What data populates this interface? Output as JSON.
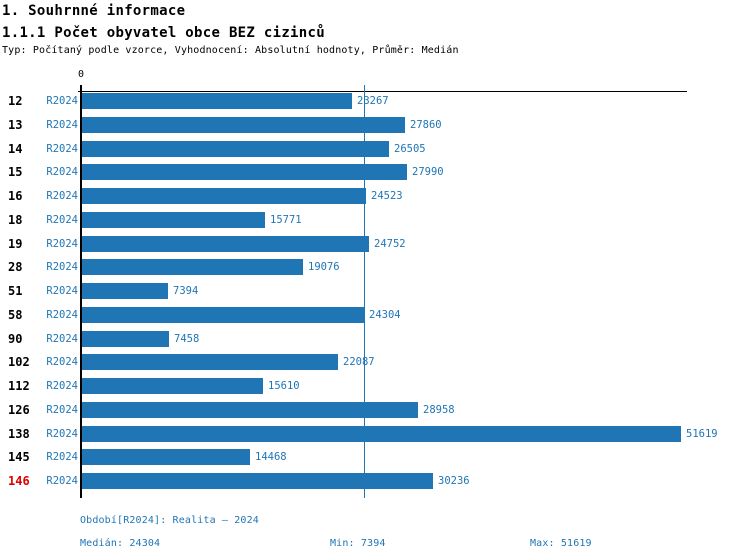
{
  "header": {
    "section_title": "1. Souhrnné informace",
    "indicator_title": "1.1.1 Počet obyvatel obce BEZ cizinců",
    "meta": "Typ: Počítaný podle vzorce, Vyhodnocení: Absolutní hodnoty, Průměr: Medián"
  },
  "chart_data": {
    "type": "bar",
    "orientation": "horizontal",
    "title": "1.1.1 Počet obyvatel obce BEZ cizinců",
    "series_name": "R2024",
    "categories": [
      "12",
      "13",
      "14",
      "15",
      "16",
      "18",
      "19",
      "28",
      "51",
      "58",
      "90",
      "102",
      "112",
      "126",
      "138",
      "145",
      "146"
    ],
    "values": [
      23267,
      27860,
      26505,
      27990,
      24523,
      15771,
      24752,
      19076,
      7394,
      24304,
      7458,
      22087,
      15610,
      28958,
      51619,
      14468,
      30236
    ],
    "highlighted_category": "146",
    "zero_tick_label": "0",
    "xlim": [
      0,
      52200
    ],
    "grid": false,
    "legend_position": "none",
    "value_labels": true,
    "median_line_value": 24304,
    "median": 24304,
    "min": 7394,
    "max": 51619
  },
  "footer": {
    "period": "Období[R2024]: Realita – 2024",
    "median": "Medián: 24304",
    "min": "Min: 7394",
    "max": "Max: 51619"
  },
  "colors": {
    "bar": "#2076B5",
    "blue_text": "#2076B5",
    "highlight_text": "#E00000",
    "axis": "#000000"
  }
}
